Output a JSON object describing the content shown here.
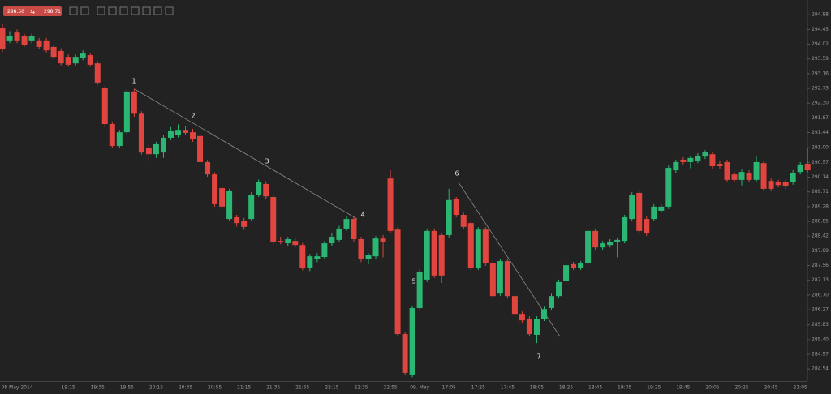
{
  "quote": {
    "bid": "298.50",
    "ask": "298.71"
  },
  "chart_data": {
    "type": "candlestick",
    "categories": [
      null,
      null,
      "08 May 2014",
      null,
      null,
      null,
      null,
      null,
      null,
      "19:15",
      null,
      null,
      null,
      "19:35",
      null,
      null,
      null,
      "19:55",
      null,
      null,
      null,
      "20:15",
      null,
      null,
      null,
      "20:35",
      null,
      null,
      null,
      "20:55",
      null,
      null,
      null,
      "21:15",
      null,
      null,
      null,
      "21:35",
      null,
      null,
      null,
      "21:55",
      null,
      null,
      null,
      "22:15",
      null,
      null,
      null,
      "22:35",
      null,
      null,
      null,
      "22:55",
      null,
      null,
      null,
      "09. May",
      null,
      null,
      null,
      "17:05",
      null,
      null,
      null,
      "17:25",
      null,
      null,
      null,
      "17:45",
      null,
      null,
      null,
      "18:05",
      null,
      null,
      null,
      "18:25",
      null,
      null,
      null,
      "18:45",
      null,
      null,
      null,
      "19:05",
      null,
      null,
      null,
      "19:25",
      null,
      null,
      null,
      "19:45",
      null,
      null,
      null,
      "20:05",
      null,
      null,
      null,
      "20:25",
      null,
      null,
      null,
      "20:45",
      null,
      null,
      null,
      "21:05",
      null
    ],
    "open": [
      294.48,
      294.13,
      294.36,
      294.25,
      294.13,
      294.13,
      294.13,
      293.94,
      293.82,
      293.65,
      293.46,
      293.61,
      293.7,
      293.46,
      292.75,
      291.69,
      291.05,
      291.45,
      292.64,
      291.99,
      290.98,
      290.81,
      290.86,
      291.29,
      291.38,
      291.52,
      291.45,
      291.34,
      290.58,
      290.22,
      289.82,
      288.92,
      288.97,
      288.87,
      288.92,
      289.63,
      289.94,
      289.56,
      288.28,
      288.21,
      288.28,
      288.16,
      287.5,
      287.74,
      287.81,
      288.21,
      288.31,
      288.64,
      288.92,
      288.33,
      287.74,
      287.83,
      288.35,
      290.1,
      288.61,
      285.56,
      284.38,
      286.32,
      287.15,
      288.57,
      288.45,
      288.45,
      289.49,
      289.04,
      288.8,
      287.5,
      288.61,
      287.62,
      286.74,
      287.69,
      286.67,
      286.15,
      286.01,
      285.54,
      286.01,
      286.32,
      286.67,
      287.1,
      287.6,
      287.5,
      287.62,
      288.57,
      288.09,
      288.16,
      288.26,
      288.28,
      288.92,
      289.68,
      288.92,
      288.92,
      289.16,
      289.28,
      290.34,
      290.65,
      290.58,
      290.62,
      290.74,
      290.81,
      290.53,
      290.58,
      290.22,
      290.06,
      290.27,
      290.06,
      290.55,
      290.03,
      289.99,
      289.99,
      289.99,
      290.29,
      290.53
    ],
    "high": [
      294.6,
      294.4,
      294.45,
      294.32,
      294.33,
      294.2,
      294.2,
      294.0,
      293.9,
      293.72,
      293.72,
      293.84,
      293.77,
      293.52,
      292.8,
      291.75,
      291.52,
      292.7,
      292.72,
      292.06,
      291.1,
      291.17,
      291.36,
      291.6,
      291.68,
      291.64,
      291.55,
      291.4,
      290.64,
      290.28,
      289.88,
      289.8,
      289.04,
      288.95,
      289.7,
      290.07,
      290.02,
      289.62,
      288.4,
      288.4,
      288.35,
      288.22,
      287.9,
      287.92,
      288.28,
      288.5,
      288.72,
      289.0,
      289.0,
      288.4,
      287.92,
      288.42,
      288.45,
      290.34,
      288.68,
      285.62,
      286.39,
      287.45,
      288.64,
      288.64,
      288.52,
      289.8,
      289.56,
      289.1,
      288.87,
      288.68,
      288.68,
      287.69,
      287.76,
      287.76,
      286.74,
      286.22,
      286.08,
      286.08,
      286.36,
      286.74,
      287.15,
      287.64,
      287.67,
      287.69,
      288.64,
      288.64,
      288.28,
      288.33,
      288.38,
      289.04,
      289.7,
      289.75,
      288.99,
      289.35,
      289.35,
      290.48,
      290.65,
      290.72,
      290.77,
      290.84,
      290.93,
      290.88,
      290.6,
      290.65,
      290.29,
      290.36,
      290.34,
      290.75,
      290.62,
      290.1,
      290.06,
      290.06,
      290.34,
      290.58,
      291.0
    ],
    "low": [
      293.8,
      294.05,
      294.05,
      293.95,
      294.05,
      293.88,
      293.78,
      293.6,
      293.4,
      293.36,
      293.4,
      293.55,
      293.36,
      292.84,
      291.6,
      290.98,
      290.98,
      291.38,
      291.9,
      290.8,
      290.6,
      290.7,
      290.7,
      291.22,
      291.3,
      291.36,
      291.17,
      290.52,
      290.15,
      289.28,
      289.2,
      288.85,
      288.7,
      288.6,
      288.85,
      289.56,
      289.5,
      288.18,
      288.18,
      288.14,
      288.09,
      287.42,
      287.4,
      287.66,
      287.74,
      288.14,
      288.24,
      288.57,
      288.26,
      287.66,
      287.6,
      287.76,
      287.8,
      288.5,
      285.49,
      284.36,
      284.3,
      286.25,
      287.08,
      287.2,
      287.05,
      288.38,
      288.97,
      288.62,
      287.43,
      287.43,
      287.55,
      286.6,
      286.67,
      286.6,
      286.08,
      285.89,
      285.49,
      285.3,
      285.94,
      286.25,
      286.6,
      287.03,
      287.43,
      287.43,
      287.55,
      288.02,
      288.02,
      288.09,
      287.8,
      288.21,
      288.85,
      288.5,
      288.43,
      288.85,
      289.09,
      289.21,
      290.27,
      290.51,
      290.4,
      290.55,
      290.67,
      290.39,
      290.39,
      289.99,
      289.99,
      289.9,
      289.99,
      289.99,
      289.73,
      289.73,
      289.84,
      289.8,
      289.92,
      290.22,
      290.27
    ],
    "close": [
      293.89,
      294.25,
      294.13,
      294.01,
      294.25,
      293.94,
      293.84,
      293.65,
      293.46,
      293.42,
      293.65,
      293.77,
      293.42,
      292.9,
      291.69,
      291.05,
      291.45,
      292.64,
      291.99,
      290.86,
      290.81,
      291.1,
      291.29,
      291.48,
      291.52,
      291.43,
      291.24,
      290.58,
      290.22,
      289.35,
      289.28,
      289.73,
      288.8,
      288.69,
      289.63,
      289.99,
      289.58,
      288.26,
      288.26,
      288.33,
      288.16,
      287.5,
      287.83,
      287.83,
      288.21,
      288.4,
      288.64,
      288.92,
      288.33,
      287.74,
      287.86,
      288.35,
      288.26,
      288.57,
      285.56,
      284.43,
      286.32,
      287.38,
      288.57,
      287.27,
      287.27,
      289.47,
      289.04,
      288.69,
      287.5,
      288.61,
      287.62,
      286.67,
      287.69,
      286.67,
      286.15,
      285.96,
      285.56,
      286.01,
      286.29,
      286.67,
      287.08,
      287.57,
      287.5,
      287.62,
      288.57,
      288.09,
      288.21,
      288.26,
      288.31,
      288.97,
      289.63,
      288.57,
      288.5,
      289.28,
      289.28,
      290.41,
      290.58,
      290.58,
      290.7,
      290.77,
      290.86,
      290.46,
      290.46,
      290.06,
      290.06,
      290.29,
      290.06,
      290.58,
      289.8,
      289.8,
      289.91,
      289.87,
      290.27,
      290.51,
      290.34
    ],
    "up_color": "#2bb673",
    "down_color": "#e0463f",
    "ylim": [
      284.19,
      295.31
    ],
    "yticks": [
      294.88,
      294.45,
      294.02,
      293.59,
      293.16,
      292.73,
      {
        "value": 292.3,
        "label": "292.30"
      },
      291.87,
      291.44,
      {
        "value": 291,
        "label": "291.00"
      },
      290.57,
      290.14,
      289.71,
      289.28,
      288.85,
      288.42,
      287.99,
      287.56,
      287.13,
      {
        "value": 286.7,
        "label": "286.70"
      },
      286.27,
      285.83,
      {
        "value": 285.4,
        "label": "285.40"
      },
      284.97,
      284.54
    ],
    "annotations": [
      "1",
      "2",
      "3",
      "4",
      "5",
      "6",
      "7"
    ]
  }
}
